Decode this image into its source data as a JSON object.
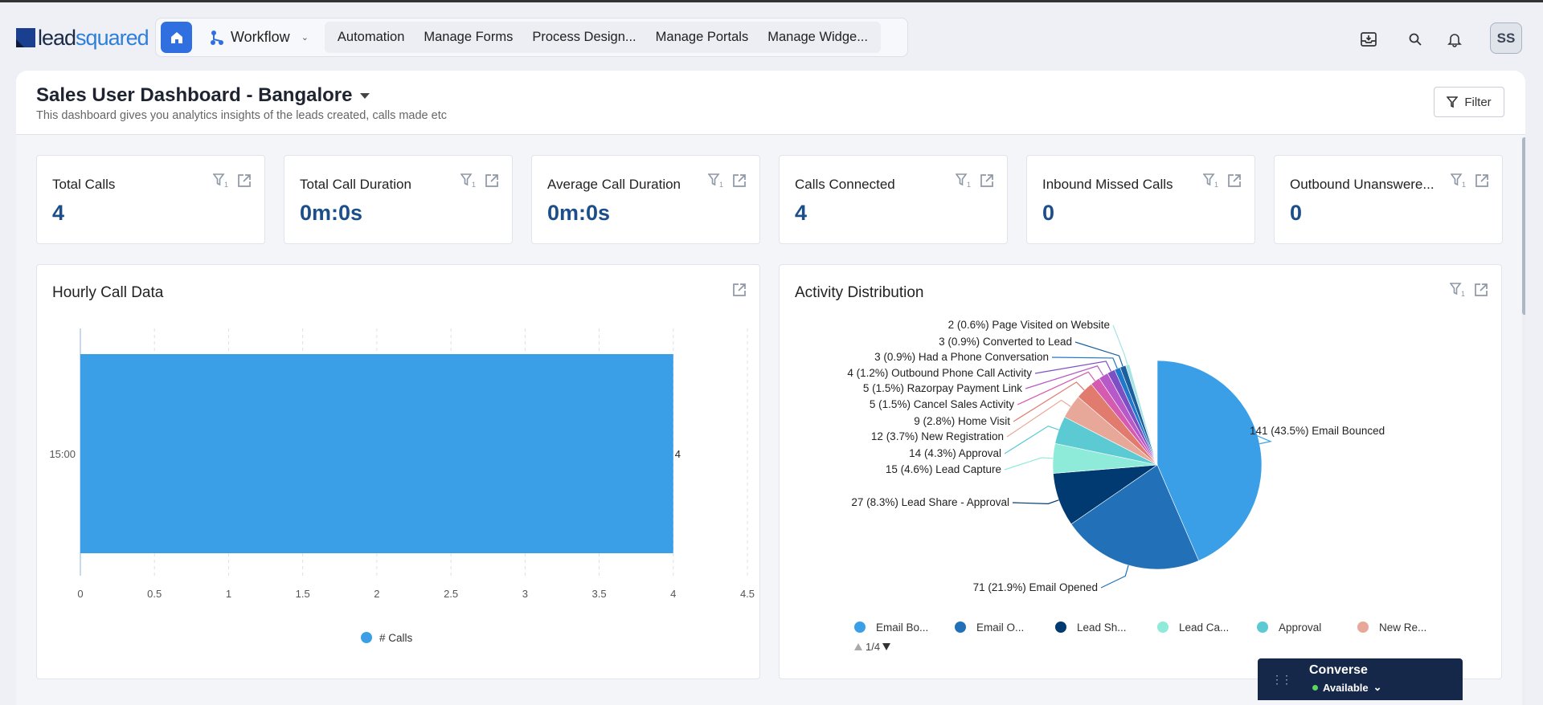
{
  "app": {
    "logo_text_dark": "lead",
    "logo_text_blue": "squared"
  },
  "nav": {
    "workflow": "Workflow",
    "links": [
      "Automation",
      "Manage Forms",
      "Process Design...",
      "Manage Portals",
      "Manage Widge..."
    ]
  },
  "user": {
    "initials": "SS"
  },
  "dashboard": {
    "title": "Sales User Dashboard - Bangalore",
    "subtitle": "This dashboard gives you analytics insights of the leads created, calls made etc",
    "filter_label": "Filter"
  },
  "kpis": [
    {
      "title": "Total Calls",
      "value": "4"
    },
    {
      "title": "Total Call Duration",
      "value": "0m:0s"
    },
    {
      "title": "Average Call Duration",
      "value": "0m:0s"
    },
    {
      "title": "Calls Connected",
      "value": "4"
    },
    {
      "title": "Inbound Missed Calls",
      "value": "0"
    },
    {
      "title": "Outbound Unanswere...",
      "value": "0"
    }
  ],
  "filter_count": "1",
  "chart_data": [
    {
      "type": "bar",
      "orientation": "horizontal",
      "title": "Hourly Call Data",
      "categories": [
        "15:00"
      ],
      "series": [
        {
          "name": "# Calls",
          "values": [
            4
          ],
          "color": "#3a9fe6"
        }
      ],
      "xlim": [
        0,
        4.5
      ],
      "xticks": [
        "0",
        "0.5",
        "1",
        "1.5",
        "2",
        "2.5",
        "3",
        "3.5",
        "4",
        "4.5"
      ],
      "grid": true,
      "legend": "bottom"
    },
    {
      "type": "pie",
      "title": "Activity Distribution",
      "legend": "bottom",
      "legend_page": "1/4",
      "slices": [
        {
          "label": "Email Bounced",
          "value": 141,
          "percent": "43.5%",
          "color": "#3a9fe6",
          "legend": "Email Bo..."
        },
        {
          "label": "Email Opened",
          "value": 71,
          "percent": "21.9%",
          "color": "#2271b8",
          "legend": "Email O..."
        },
        {
          "label": "Lead Share - Approval",
          "value": 27,
          "percent": "8.3%",
          "color": "#003a70",
          "legend": "Lead Sh..."
        },
        {
          "label": "Lead Capture",
          "value": 15,
          "percent": "4.6%",
          "color": "#8eead9",
          "legend": "Lead Ca..."
        },
        {
          "label": "Approval",
          "value": 14,
          "percent": "4.3%",
          "color": "#5ccad3",
          "legend": "Approval"
        },
        {
          "label": "New Registration",
          "value": 12,
          "percent": "3.7%",
          "color": "#e8a899",
          "legend": "New Re..."
        },
        {
          "label": "Home Visit",
          "value": 9,
          "percent": "2.8%",
          "color": "#e07b6e"
        },
        {
          "label": "Cancel Sales Activity",
          "value": 5,
          "percent": "1.5%",
          "color": "#d55bb0"
        },
        {
          "label": "Razorpay Payment Link",
          "value": 5,
          "percent": "1.5%",
          "color": "#b859c9"
        },
        {
          "label": "Outbound Phone Call Activity",
          "value": 4,
          "percent": "1.2%",
          "color": "#7d4fc4"
        },
        {
          "label": "Had a Phone Conversation",
          "value": 3,
          "percent": "0.9%",
          "color": "#1f78c8"
        },
        {
          "label": "Converted to Lead",
          "value": 3,
          "percent": "0.9%",
          "color": "#1b5f9e"
        },
        {
          "label": "Page Visited on Website",
          "value": 2,
          "percent": "0.6%",
          "color": "#a6e3e3"
        }
      ]
    }
  ],
  "converse": {
    "title": "Converse",
    "status": "Available",
    "status_color": "#5ed35e"
  }
}
